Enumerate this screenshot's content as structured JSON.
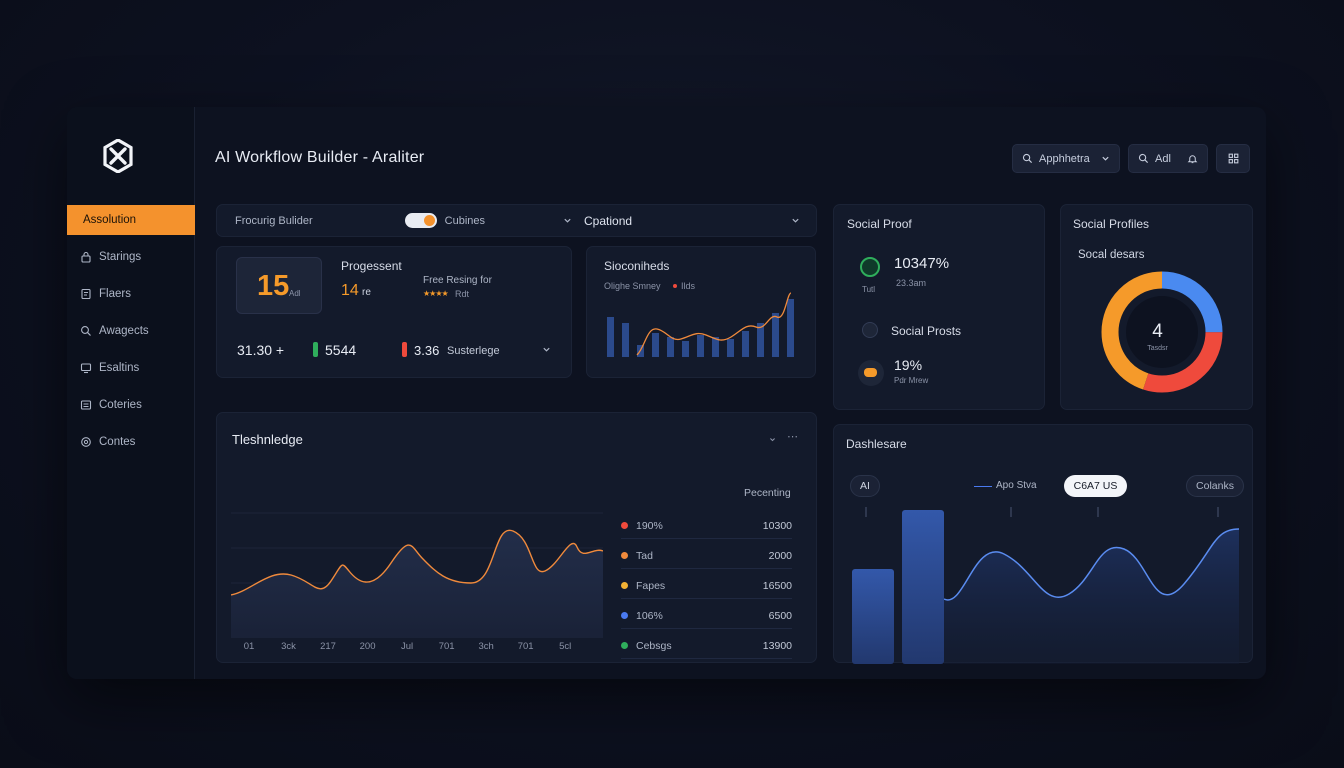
{
  "app": {
    "title": "AI Workflow Builder - Araliter"
  },
  "top_controls": {
    "search_label": "Apphhetra",
    "user_label": "Adl"
  },
  "sidebar": {
    "items": [
      {
        "label": "Assolution",
        "icon": "none",
        "active": true
      },
      {
        "label": "Starings",
        "icon": "lock-icon"
      },
      {
        "label": "Flaers",
        "icon": "page-icon"
      },
      {
        "label": "Awagects",
        "icon": "search-icon"
      },
      {
        "label": "Esaltins",
        "icon": "monitor-icon"
      },
      {
        "label": "Coteries",
        "icon": "list-icon"
      },
      {
        "label": "Contes",
        "icon": "gear-icon"
      }
    ]
  },
  "filterbar": {
    "left_label": "Frocurig Bulider",
    "toggle_label": "Cubines",
    "dropdown_label": "Cpationd"
  },
  "progress_card": {
    "big_number": "15",
    "big_suffix": "Adl",
    "title": "Progessent",
    "value": "14",
    "value_suffix": "re",
    "promo_title": "Free Resing for",
    "promo_sub": "Rdt",
    "promo_stars": 4,
    "stat1": "31.30 +",
    "stat2": "5544",
    "stat3": "3.36",
    "stat3_label": "Susterlege"
  },
  "mini_chart": {
    "title": "Sioconiheds",
    "subtitle": "Olighe Smney",
    "series_label": "Ilds",
    "colors": {
      "bars": "#2b4a8c",
      "line": "#f08a3c"
    }
  },
  "social_proof": {
    "title": "Social Proof",
    "stat1": "10347%",
    "stat1_badge": "Tutl",
    "stat1_sub": "23.3am",
    "posts_label": "Social Prosts",
    "stat2": "19%",
    "stat2_sub": "Pdr Mrew"
  },
  "social_profiles": {
    "title": "Social Profiles",
    "subtitle": "Socal desars",
    "center_value": "4",
    "center_label": "Tasdsr",
    "donut": [
      {
        "color": "#4a8af0",
        "value": 25
      },
      {
        "color": "#ef4a3c",
        "value": 30
      },
      {
        "color": "#f59a2a",
        "value": 45
      }
    ]
  },
  "line_card": {
    "title": "Tleshnledge",
    "legend_title": "Pecenting",
    "x_ticks": [
      "01",
      "3ck",
      "217",
      "200",
      "Jul",
      "701",
      "3ch",
      "701",
      "5cl"
    ],
    "legend": [
      {
        "label": "190%",
        "value": "10300",
        "color": "#ef4a3c"
      },
      {
        "label": "Tad",
        "value": "2000",
        "color": "#f08a3c"
      },
      {
        "label": "Fapes",
        "value": "16500",
        "color": "#f2b134"
      },
      {
        "label": "106%",
        "value": "6500",
        "color": "#4a7af0"
      },
      {
        "label": "Cebsgs",
        "value": "13900",
        "color": "#2fae5c"
      }
    ]
  },
  "dash_card": {
    "title": "Dashlesare",
    "ai_label": "AI",
    "series_label": "Apo Stva",
    "button_label": "C6A7 US",
    "right_label": "Colanks"
  },
  "colors": {
    "accent": "#f4922d",
    "panel": "#131a2b",
    "bg": "#0d1220"
  }
}
